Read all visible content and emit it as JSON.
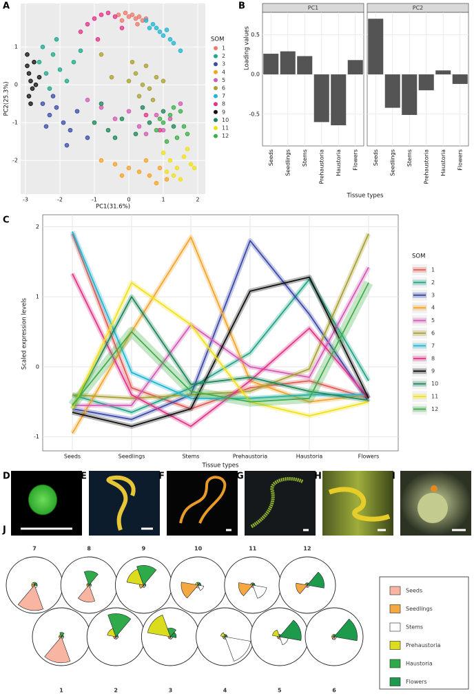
{
  "chart_data": [
    {
      "type": "scatter",
      "panel_label": "A",
      "xlabel": "PC1(31.6%)",
      "ylabel": "PC2(25.3%)",
      "legend_title": "SOM",
      "xlim": [
        -3.14,
        2.22
      ],
      "ylim": [
        -2.89,
        2.15
      ],
      "xticks": [
        -3,
        -2,
        -1,
        0,
        1,
        2
      ],
      "yticks": [
        -2,
        -1,
        0,
        1
      ],
      "grid": true,
      "series": [
        {
          "name": "1",
          "color": "#ec7a6f",
          "x": [
            -0.3,
            -0.1,
            0.0,
            0.1,
            0.2,
            0.3,
            0.4,
            0.5,
            -0.2,
            0.25
          ],
          "y": [
            1.85,
            1.9,
            1.8,
            1.85,
            1.75,
            1.8,
            1.7,
            1.75,
            1.7,
            1.6
          ]
        },
        {
          "name": "2",
          "color": "#20a88a",
          "x": [
            -2.6,
            -2.4,
            -2.2,
            -2.0,
            -1.8,
            -2.3,
            -1.6,
            -2.5,
            -1.4,
            -2.1
          ],
          "y": [
            0.6,
            0.3,
            0.8,
            0.4,
            0.1,
            -0.1,
            0.6,
            1.0,
            0.9,
            1.2
          ]
        },
        {
          "name": "3",
          "color": "#3c4ea6",
          "x": [
            -2.5,
            -2.3,
            -2.1,
            -1.9,
            -1.7,
            -2.4,
            -1.5,
            -1.2,
            -2.2,
            -1.8
          ],
          "y": [
            -0.5,
            -0.8,
            -0.6,
            -1.0,
            -1.2,
            -1.1,
            -0.7,
            -1.4,
            -0.3,
            -1.6
          ]
        },
        {
          "name": "4",
          "color": "#f5a42a",
          "x": [
            -0.8,
            -0.4,
            0.0,
            0.3,
            0.6,
            0.9,
            1.1,
            0.5,
            -0.2,
            0.8
          ],
          "y": [
            -2.0,
            -2.1,
            -2.2,
            -2.3,
            -2.4,
            -2.2,
            -2.5,
            -2.0,
            -2.4,
            -2.6
          ]
        },
        {
          "name": "5",
          "color": "#d35cb5",
          "x": [
            -0.8,
            -0.4,
            0.0,
            0.3,
            0.8,
            1.2,
            1.5,
            -1.2,
            0.5,
            1.0
          ],
          "y": [
            -0.6,
            -0.9,
            -0.7,
            -1.1,
            -0.8,
            -0.9,
            -0.5,
            -0.4,
            -1.3,
            -1.2
          ]
        },
        {
          "name": "6",
          "color": "#a9a133",
          "x": [
            0.0,
            0.2,
            0.4,
            0.6,
            0.8,
            0.3,
            0.5,
            -0.5,
            0.7,
            0.1,
            -0.8,
            1.0
          ],
          "y": [
            0.1,
            0.3,
            0.0,
            -0.1,
            0.2,
            -0.3,
            0.5,
            0.2,
            -0.4,
            0.6,
            0.8,
            0.1
          ]
        },
        {
          "name": "7",
          "color": "#22b6d2",
          "x": [
            0.5,
            0.7,
            0.8,
            0.9,
            1.0,
            1.2,
            1.3,
            1.5,
            0.6,
            1.1
          ],
          "y": [
            1.7,
            1.6,
            1.5,
            1.4,
            1.3,
            1.2,
            1.1,
            0.9,
            1.5,
            1.45
          ]
        },
        {
          "name": "8",
          "color": "#e23489",
          "x": [
            -1.2,
            -1.0,
            -0.8,
            -0.6,
            -0.4,
            -1.4,
            -0.2,
            0.5,
            0.9,
            -0.9
          ],
          "y": [
            1.6,
            1.75,
            1.85,
            1.9,
            1.8,
            1.4,
            1.5,
            -0.8,
            -1.2,
            1.2
          ]
        },
        {
          "name": "9",
          "color": "#111111",
          "x": [
            -2.95,
            -2.9,
            -2.85,
            -2.8,
            -2.9,
            -2.75,
            -2.7,
            -2.85,
            -2.95,
            -2.6
          ],
          "y": [
            0.5,
            0.3,
            0.1,
            -0.1,
            -0.3,
            0.6,
            0.0,
            -0.5,
            0.8,
            0.2
          ]
        },
        {
          "name": "10",
          "color": "#1e8658",
          "x": [
            -1.0,
            -0.6,
            -0.2,
            0.2,
            0.6,
            1.0,
            -0.8,
            0.4,
            1.3,
            -0.4
          ],
          "y": [
            -1.0,
            -1.2,
            -0.9,
            -1.3,
            -1.0,
            -0.7,
            -0.5,
            -0.6,
            -1.1,
            -1.4
          ]
        },
        {
          "name": "11",
          "color": "#f1e01c",
          "x": [
            1.0,
            1.2,
            1.4,
            1.6,
            1.8,
            1.3,
            1.5,
            1.7,
            1.1,
            1.9
          ],
          "y": [
            -1.8,
            -2.0,
            -2.2,
            -1.9,
            -2.1,
            -2.4,
            -2.5,
            -1.7,
            -2.3,
            -2.2
          ]
        },
        {
          "name": "12",
          "color": "#3fae4a",
          "x": [
            0.8,
            1.0,
            1.2,
            1.4,
            1.6,
            1.1,
            1.3,
            0.9,
            1.5,
            1.7
          ],
          "y": [
            -1.2,
            -1.0,
            -0.8,
            -1.4,
            -1.1,
            -1.5,
            -0.6,
            -0.9,
            -0.7,
            -1.3
          ]
        }
      ]
    },
    {
      "type": "bar",
      "panel_label": "B",
      "ylabel": "Loading values",
      "xlabel": "Tissue types",
      "color": "#545454",
      "categories": [
        "Seeds",
        "Seedlings",
        "Stems",
        "Prehaustoria",
        "Haustoria",
        "Flowers"
      ],
      "facets": [
        {
          "name": "PC1",
          "values": [
            0.26,
            0.29,
            0.23,
            -0.6,
            -0.64,
            0.18
          ]
        },
        {
          "name": "PC2",
          "values": [
            0.7,
            -0.42,
            -0.51,
            -0.2,
            0.05,
            -0.12
          ]
        }
      ],
      "ylim": [
        -0.9,
        0.78
      ],
      "yticks": [
        -0.5,
        {
          "value": 0,
          "label": "0.0"
        },
        0.5
      ],
      "grid": true
    },
    {
      "type": "line",
      "panel_label": "C",
      "ylabel": "Scaled expression levels",
      "xlabel": "Tissue types",
      "legend_title": "SOM",
      "categories": [
        "Seeds",
        "Seedlings",
        "Stems",
        "Prehaustoria",
        "Haustoria",
        "Flowers"
      ],
      "ylim": [
        -1.2,
        2.17
      ],
      "yticks": [
        -1,
        0,
        1,
        2
      ],
      "grid": true,
      "series": [
        {
          "name": "1",
          "color": "#e35a55",
          "values": [
            1.9,
            -0.3,
            -0.6,
            -0.3,
            -0.2,
            -0.45
          ]
        },
        {
          "name": "2",
          "color": "#1fa487",
          "values": [
            -0.4,
            -0.65,
            -0.3,
            0.2,
            1.25,
            -0.2
          ]
        },
        {
          "name": "3",
          "color": "#3a48a8",
          "values": [
            -0.6,
            -0.75,
            -0.4,
            1.8,
            0.75,
            -0.5
          ]
        },
        {
          "name": "4",
          "color": "#f5a42a",
          "values": [
            -0.95,
            0.5,
            1.85,
            -0.2,
            -0.5,
            -0.4
          ]
        },
        {
          "name": "5",
          "color": "#d35cb5",
          "values": [
            -0.55,
            -0.55,
            0.6,
            0.0,
            -0.15,
            1.42
          ]
        },
        {
          "name": "6",
          "color": "#a9a133",
          "values": [
            -0.4,
            -0.45,
            -0.4,
            -0.35,
            -0.03,
            1.9
          ]
        },
        {
          "name": "7",
          "color": "#22b6d2",
          "values": [
            1.93,
            -0.08,
            -0.45,
            -0.45,
            -0.4,
            -0.4
          ]
        },
        {
          "name": "8",
          "color": "#e23489",
          "values": [
            1.33,
            -0.4,
            -0.85,
            -0.2,
            0.55,
            -0.45
          ]
        },
        {
          "name": "9",
          "color": "#111111",
          "values": [
            -0.65,
            -0.85,
            -0.6,
            1.08,
            1.28,
            -0.45
          ]
        },
        {
          "name": "10",
          "color": "#1e8658",
          "values": [
            -0.6,
            1.0,
            -0.25,
            -0.15,
            -0.35,
            -0.48
          ]
        },
        {
          "name": "11",
          "color": "#f1e01c",
          "values": [
            -0.6,
            1.2,
            0.6,
            -0.5,
            -0.7,
            -0.5
          ]
        },
        {
          "name": "12",
          "color": "#3fae4a",
          "values": [
            -0.55,
            0.5,
            -0.35,
            -0.5,
            -0.45,
            1.2
          ]
        }
      ]
    },
    {
      "type": "rose",
      "panel_label": "J",
      "rlim": [
        0,
        1
      ],
      "categories": [
        "Seeds",
        "Seedlings",
        "Stems",
        "Prehaustoria",
        "Haustoria",
        "Flowers"
      ],
      "colors": [
        "#f7b5a2",
        "#f5a742",
        "#ffffff",
        "#dcdc1e",
        "#2faa4b",
        "#1e9a4c"
      ],
      "series": [
        {
          "name": "1",
          "values": [
            0.9,
            0.08,
            0.08,
            0.08,
            0.15,
            0.08
          ]
        },
        {
          "name": "2",
          "values": [
            0.08,
            0.08,
            0.08,
            0.3,
            0.8,
            0.08
          ]
        },
        {
          "name": "3",
          "values": [
            0.08,
            0.08,
            0.08,
            0.8,
            0.3,
            0.2
          ]
        },
        {
          "name": "4",
          "values": [
            0.08,
            0.08,
            0.9,
            0.15,
            0.08,
            0.08
          ]
        },
        {
          "name": "5",
          "values": [
            0.08,
            0.08,
            0.3,
            0.25,
            0.08,
            0.75
          ]
        },
        {
          "name": "6",
          "values": [
            0.1,
            0.08,
            0.08,
            0.08,
            0.08,
            0.8
          ]
        },
        {
          "name": "7",
          "values": [
            0.9,
            0.1,
            0.1,
            0.1,
            0.1,
            0.1
          ]
        },
        {
          "name": "8",
          "values": [
            0.6,
            0.08,
            0.08,
            0.08,
            0.5,
            0.08
          ]
        },
        {
          "name": "9",
          "values": [
            0.08,
            0.15,
            0.08,
            0.6,
            0.7,
            0.08
          ]
        },
        {
          "name": "10",
          "values": [
            0.1,
            0.6,
            0.2,
            0.1,
            0.1,
            0.1
          ]
        },
        {
          "name": "11",
          "values": [
            0.08,
            0.5,
            0.5,
            0.08,
            0.08,
            0.08
          ]
        },
        {
          "name": "12",
          "values": [
            0.08,
            0.4,
            0.08,
            0.08,
            0.08,
            0.6
          ]
        }
      ]
    }
  ],
  "photos": {
    "labels": [
      "D",
      "E",
      "F",
      "G",
      "H",
      "I"
    ]
  }
}
